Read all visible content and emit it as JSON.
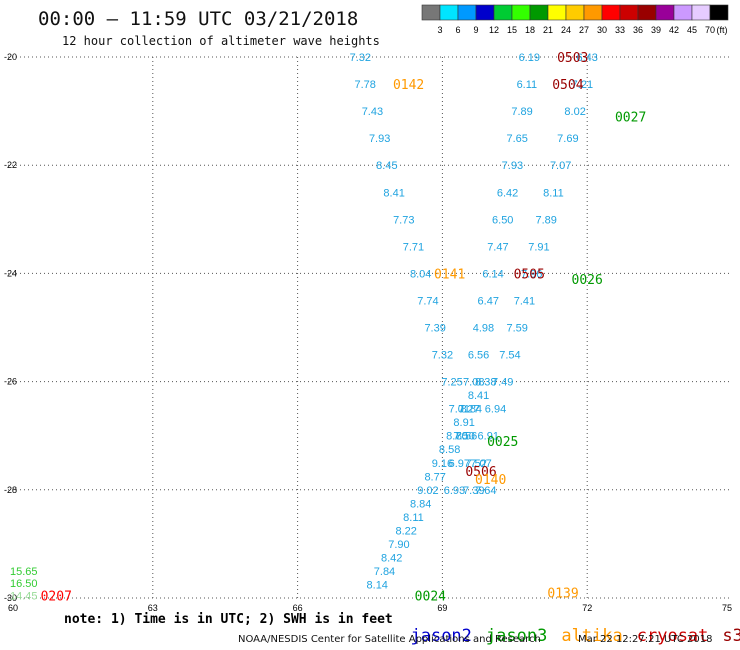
{
  "header": {
    "title": "00:00 – 11:59 UTC 03/21/2018",
    "subtitle": "12 hour collection of altimeter wave heights"
  },
  "legend": {
    "unit": "(ft)",
    "colors": [
      "#777777",
      "#00e5ff",
      "#0099ff",
      "#0000cc",
      "#00cc33",
      "#33ff00",
      "#009900",
      "#ffff00",
      "#ffcc00",
      "#ff9900",
      "#ff0000",
      "#cc0000",
      "#990000",
      "#990099",
      "#cc99ff",
      "#e6ccff",
      "#000000"
    ],
    "labels": [
      "3",
      "6",
      "9",
      "12",
      "15",
      "18",
      "21",
      "24",
      "27",
      "30",
      "33",
      "36",
      "39",
      "42",
      "45",
      "70"
    ]
  },
  "footer": {
    "note": "note: 1) Time is in UTC; 2) SWH is in feet",
    "credit": "NOAA/NESDIS Center for Satellite Applications and Research",
    "stamp": "Mar 22 12:27:21 UTC 2018",
    "satellites": [
      {
        "name": "jason2",
        "color": "#0000cc"
      },
      {
        "name": "jason3",
        "color": "#009900"
      },
      {
        "name": "altika",
        "color": "#ff9900"
      },
      {
        "name": "cryosat",
        "color": "#cc0000"
      },
      {
        "name": "s3a",
        "color": "#990000"
      }
    ]
  },
  "chart_data": {
    "type": "scatter",
    "title": "00:00 – 11:59 UTC 03/21/2018",
    "subtitle": "12 hour collection of altimeter wave heights",
    "xlim": [
      60,
      75
    ],
    "ylim": [
      -30,
      -20
    ],
    "x_ticks": [
      "60",
      "63",
      "66",
      "69",
      "72",
      "75"
    ],
    "y_ticks": [
      "-20",
      "-22",
      "-24",
      "-26",
      "-28",
      "-30"
    ],
    "grid": true,
    "tracks": [
      {
        "x": [
          67.3,
          67.4,
          67.55,
          67.7,
          67.85,
          68.0,
          68.2,
          68.4,
          68.55,
          68.7,
          68.85,
          69.0,
          69.2,
          69.35,
          69.5,
          69.7,
          69.9
        ],
        "y": [
          -20.0,
          -20.5,
          -21.0,
          -21.5,
          -22.0,
          -22.5,
          -23.0,
          -23.5,
          -24.0,
          -24.5,
          -25.0,
          -25.5,
          -26.0,
          -26.5,
          -27.0,
          -27.5,
          -28.0
        ],
        "values": [
          "7.32",
          "7.78",
          "7.43",
          "7.93",
          "8.45",
          "8.41",
          "7.73",
          "7.71",
          "8.04",
          "7.74",
          "7.39",
          "7.32",
          "7.25",
          "7.01",
          "8.56",
          "7.52",
          "7.64"
        ]
      },
      {
        "x": [
          70.8,
          70.75,
          70.65,
          70.55,
          70.45,
          70.35,
          70.25,
          70.15,
          70.05,
          69.95,
          69.85,
          69.75,
          69.65,
          69.55,
          69.45,
          69.35,
          69.25
        ],
        "y": [
          -20.0,
          -20.5,
          -21.0,
          -21.5,
          -22.0,
          -22.5,
          -23.0,
          -23.5,
          -24.0,
          -24.5,
          -25.0,
          -25.5,
          -26.0,
          -26.5,
          -27.0,
          -27.5,
          -28.0
        ],
        "values": [
          "6.19",
          "6.11",
          "7.89",
          "7.65",
          "7.93",
          "6.42",
          "6.50",
          "7.47",
          "6.14",
          "6.47",
          "4.98",
          "6.56",
          "7.08",
          "7.27",
          "7.50",
          "6.97",
          "6.93"
        ]
      },
      {
        "x": [
          72.0,
          71.9,
          71.75,
          71.6,
          71.45,
          71.3,
          71.15,
          71.0,
          70.85,
          70.7,
          70.55,
          70.4,
          70.25,
          70.1,
          69.95,
          69.8,
          69.65
        ],
        "y": [
          -20.0,
          -20.5,
          -21.0,
          -21.5,
          -22.0,
          -22.5,
          -23.0,
          -23.5,
          -24.0,
          -24.5,
          -25.0,
          -25.5,
          -26.0,
          -26.5,
          -27.0,
          -27.5,
          -28.0
        ],
        "values": [
          "6.43",
          "7.21",
          "8.02",
          "7.69",
          "7.07",
          "8.11",
          "7.89",
          "7.91",
          "7.96",
          "7.41",
          "7.59",
          "7.54",
          "7.49",
          "6.94",
          "6.91",
          "7.07",
          "7.39"
        ]
      },
      {
        "x": [
          69.9,
          69.75,
          69.6,
          69.45,
          69.3,
          69.15,
          69.0,
          68.85,
          68.7,
          68.55,
          68.4,
          68.25,
          68.1,
          67.95,
          67.8,
          67.65
        ],
        "y": [
          -26.0,
          -26.25,
          -26.5,
          -26.75,
          -27.0,
          -27.25,
          -27.5,
          -27.75,
          -28.0,
          -28.25,
          -28.5,
          -28.75,
          -29.0,
          -29.25,
          -29.5,
          -29.75
        ],
        "values": [
          "8.38",
          "8.41",
          "8.84",
          "8.91",
          "8.70",
          "8.58",
          "9.16",
          "8.77",
          "9.02",
          "8.84",
          "8.11",
          "8.22",
          "7.90",
          "8.42",
          "7.84",
          "8.14"
        ]
      }
    ],
    "labeled_points": [
      {
        "text": "0503",
        "color": "#990000",
        "x": 71.7,
        "y": -20.0
      },
      {
        "text": "0504",
        "color": "#990000",
        "x": 71.6,
        "y": -20.5
      },
      {
        "text": "0027",
        "color": "#009900",
        "x": 72.9,
        "y": -21.1
      },
      {
        "text": "0142",
        "color": "#ff9900",
        "x": 68.3,
        "y": -20.5
      },
      {
        "text": "0141",
        "color": "#ff9900",
        "x": 69.15,
        "y": -24.0
      },
      {
        "text": "0505",
        "color": "#990000",
        "x": 70.8,
        "y": -24.0
      },
      {
        "text": "0026",
        "color": "#009900",
        "x": 72.0,
        "y": -24.1
      },
      {
        "text": "0025",
        "color": "#009900",
        "x": 70.25,
        "y": -27.1
      },
      {
        "text": "0506",
        "color": "#990000",
        "x": 69.8,
        "y": -27.65
      },
      {
        "text": "0140",
        "color": "#ff9900",
        "x": 70.0,
        "y": -27.8
      },
      {
        "text": "0024",
        "color": "#009900",
        "x": 68.75,
        "y": -29.95
      },
      {
        "text": "0139",
        "color": "#ff9900",
        "x": 71.5,
        "y": -29.9
      },
      {
        "text": "0207",
        "color": "#ff0000",
        "x": 61.0,
        "y": -29.95
      }
    ],
    "edge_values": [
      {
        "text": "15.65",
        "color": "#33cc33",
        "x": 60.0,
        "y": -29.5
      },
      {
        "text": "16.50",
        "color": "#33cc33",
        "x": 60.0,
        "y": -29.72
      },
      {
        "text": "14.45",
        "color": "#99dd99",
        "x": 60.0,
        "y": -29.95
      }
    ]
  }
}
